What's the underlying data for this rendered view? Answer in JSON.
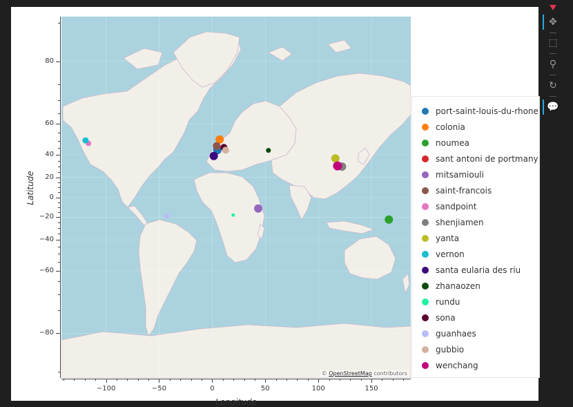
{
  "map": {
    "attribution_prefix": "© ",
    "attribution_link": "OpenStreetMap",
    "attribution_suffix": " contributors",
    "water_color": "#aad3df",
    "land_color": "#f2efe9",
    "border_color": "#c9b8c9"
  },
  "axes": {
    "xlabel": "Longitude",
    "ylabel": "Latitude",
    "xlim": [
      -142,
      187
    ],
    "ylim": [
      -89,
      89
    ],
    "yscale": "web-mercator",
    "x_ticks": [
      -100,
      -50,
      0,
      50,
      100,
      150
    ],
    "x_tick_labels": [
      "−100",
      "−50",
      "0",
      "50",
      "100",
      "150"
    ],
    "y_ticks": [
      -80,
      -60,
      -40,
      -20,
      0,
      20,
      40,
      60,
      80
    ],
    "y_tick_labels": [
      "−80",
      "−60",
      "−40",
      "−20",
      "0",
      "20",
      "40",
      "60",
      "80"
    ]
  },
  "legend": {
    "items": [
      {
        "label": "port-saint-louis-du-rhone",
        "color": "#1f77b4"
      },
      {
        "label": "colonia",
        "color": "#ff7f0e"
      },
      {
        "label": "noumea",
        "color": "#2ca02c"
      },
      {
        "label": "sant antoni de portmany",
        "color": "#d62728"
      },
      {
        "label": "mitsamiouli",
        "color": "#9467bd"
      },
      {
        "label": "saint-francois",
        "color": "#8c564b"
      },
      {
        "label": "sandpoint",
        "color": "#e377c2"
      },
      {
        "label": "shenjiamen",
        "color": "#7f7f7f"
      },
      {
        "label": "yanta",
        "color": "#bcbd22"
      },
      {
        "label": "vernon",
        "color": "#17becf"
      },
      {
        "label": "santa eularia des riu",
        "color": "#3d0a7d"
      },
      {
        "label": "zhanaozen",
        "color": "#0a4a0a"
      },
      {
        "label": "rundu",
        "color": "#1ef2a0"
      },
      {
        "label": "sona",
        "color": "#5a0030"
      },
      {
        "label": "guanhaes",
        "color": "#b8bdf5"
      },
      {
        "label": "gubbio",
        "color": "#d4b0a0"
      },
      {
        "label": "wenchang",
        "color": "#c0007a"
      }
    ]
  },
  "chart_data": {
    "type": "scatter",
    "xlabel": "Longitude",
    "ylabel": "Latitude",
    "points": [
      {
        "name": "port-saint-louis-du-rhone",
        "lon": 4.8,
        "lat": 43.4,
        "size": 12,
        "color": "#1f77b4"
      },
      {
        "name": "colonia",
        "lon": 7.0,
        "lat": 50.9,
        "size": 12,
        "color": "#ff7f0e"
      },
      {
        "name": "noumea",
        "lon": 166.4,
        "lat": -22.3,
        "size": 12,
        "color": "#2ca02c"
      },
      {
        "name": "sant antoni de portmany",
        "lon": 1.3,
        "lat": 39.0,
        "size": 10,
        "color": "#d62728"
      },
      {
        "name": "mitsamiouli",
        "lon": 43.3,
        "lat": -11.4,
        "size": 12,
        "color": "#9467bd"
      },
      {
        "name": "saint-francois",
        "lon": 4.2,
        "lat": 46.5,
        "size": 11,
        "color": "#8c564b"
      },
      {
        "name": "sandpoint",
        "lon": -116.6,
        "lat": 48.3,
        "size": 8,
        "color": "#e377c2"
      },
      {
        "name": "shenjiamen",
        "lon": 122.3,
        "lat": 30.0,
        "size": 12,
        "color": "#7f7f7f"
      },
      {
        "name": "yanta",
        "lon": 116.0,
        "lat": 37.0,
        "size": 12,
        "color": "#bcbd22"
      },
      {
        "name": "vernon",
        "lon": -119.3,
        "lat": 50.3,
        "size": 9,
        "color": "#17becf"
      },
      {
        "name": "santa eularia des riu",
        "lon": 1.5,
        "lat": 39.0,
        "size": 12,
        "color": "#3d0a7d"
      },
      {
        "name": "zhanaozen",
        "lon": 52.9,
        "lat": 43.3,
        "size": 7,
        "color": "#0a4a0a"
      },
      {
        "name": "rundu",
        "lon": 19.8,
        "lat": -17.9,
        "size": 5,
        "color": "#1ef2a0"
      },
      {
        "name": "sona",
        "lon": 11.0,
        "lat": 45.5,
        "size": 10,
        "color": "#5a0030"
      },
      {
        "name": "guanhaes",
        "lon": -42.9,
        "lat": -18.8,
        "size": 8,
        "color": "#b8bdf5"
      },
      {
        "name": "gubbio",
        "lon": 12.6,
        "lat": 43.4,
        "size": 10,
        "color": "#d4b0a0"
      },
      {
        "name": "wenchang",
        "lon": 118.0,
        "lat": 30.6,
        "size": 13,
        "color": "#c0007a"
      }
    ]
  },
  "toolbar": {
    "tools": [
      {
        "name": "pan-icon",
        "glyph": "✥",
        "active": true
      },
      {
        "name": "box-zoom-icon",
        "glyph": "⬚",
        "active": false
      },
      {
        "name": "wheel-zoom-icon",
        "glyph": "⚲",
        "active": false
      },
      {
        "name": "reset-icon",
        "glyph": "↻",
        "active": false
      },
      {
        "name": "hover-icon",
        "glyph": "💬",
        "active": true
      }
    ]
  }
}
